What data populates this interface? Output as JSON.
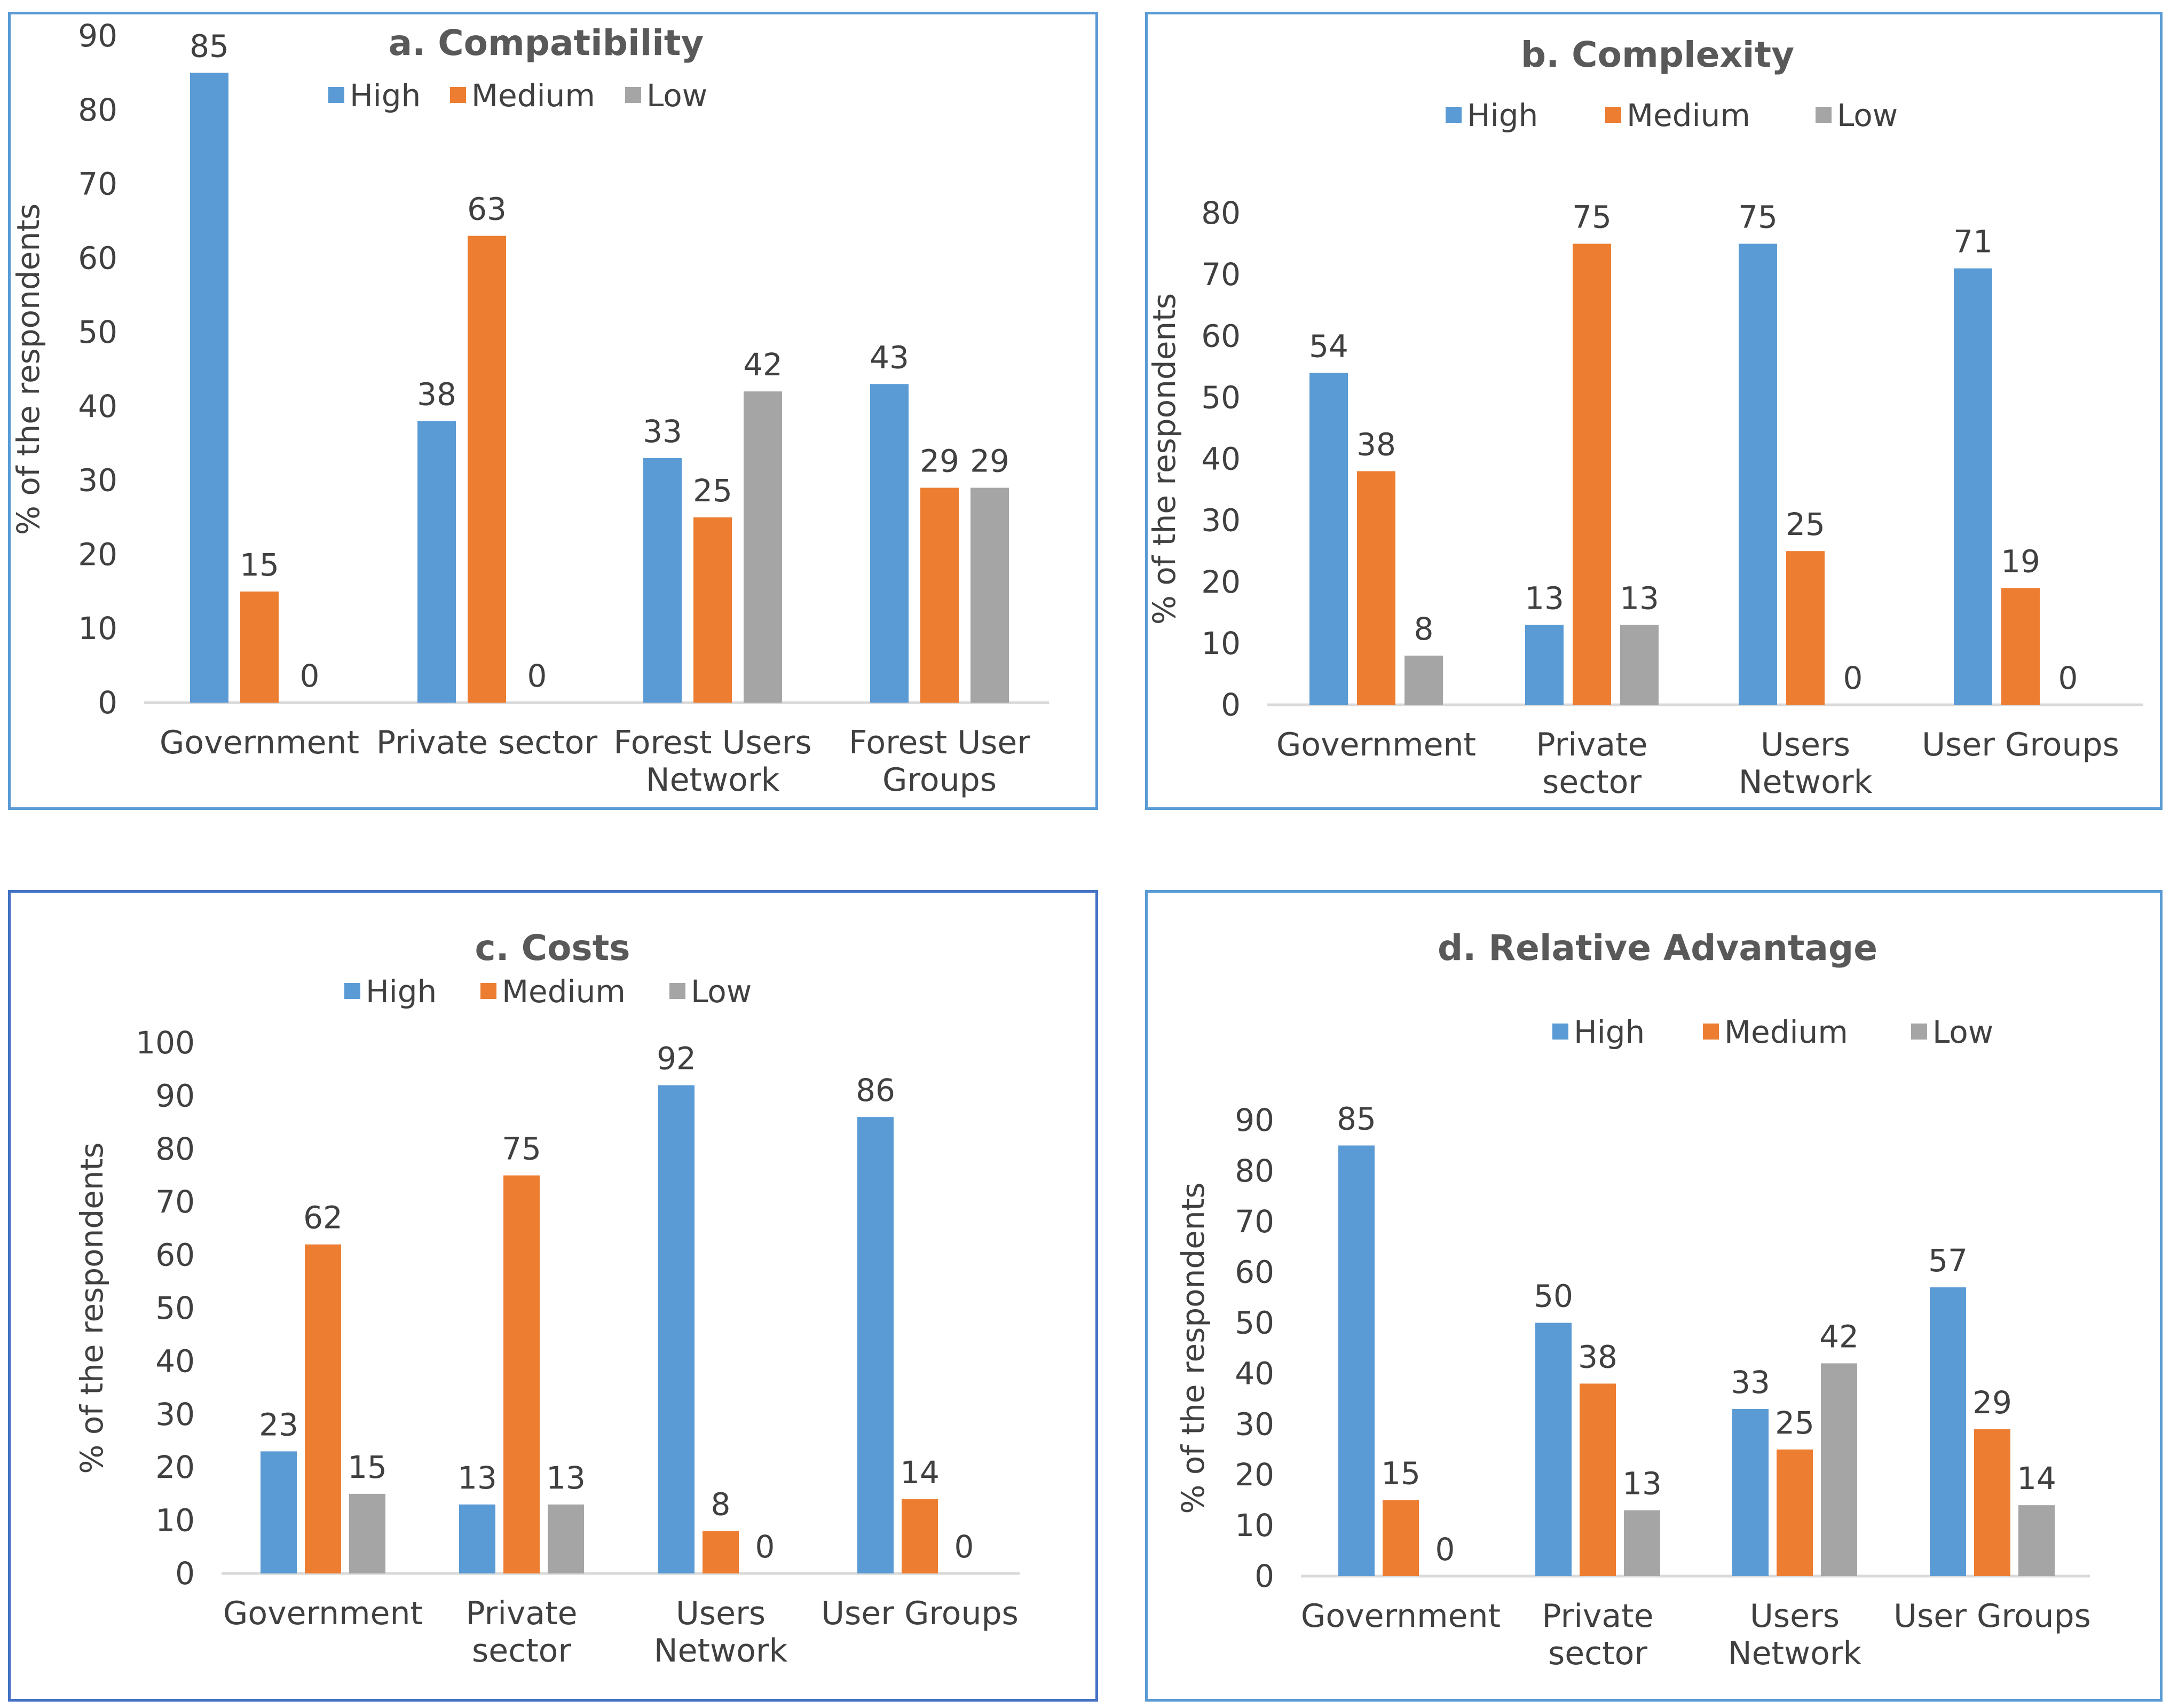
{
  "colors": {
    "high": "#5b9bd5",
    "medium": "#ed7d31",
    "low": "#a5a5a5",
    "axis": "#d9d9d9",
    "text": "#404040"
  },
  "chart_data": [
    {
      "id": "a",
      "type": "bar",
      "title": "a. Compatibility",
      "ylabel": "% of the respondents",
      "ylim": [
        0,
        90
      ],
      "yticks": [
        0,
        10,
        20,
        30,
        40,
        50,
        60,
        70,
        80,
        90
      ],
      "legend": [
        "High",
        "Medium",
        "Low"
      ],
      "categories": [
        [
          "Government"
        ],
        [
          "Private sector"
        ],
        [
          "Forest Users",
          "Network"
        ],
        [
          "Forest User",
          "Groups"
        ]
      ],
      "series": [
        {
          "name": "High",
          "values": [
            85,
            38,
            33,
            43
          ]
        },
        {
          "name": "Medium",
          "values": [
            15,
            63,
            25,
            29
          ]
        },
        {
          "name": "Low",
          "values": [
            0,
            0,
            42,
            29
          ]
        }
      ]
    },
    {
      "id": "b",
      "type": "bar",
      "title": "b. Complexity",
      "ylabel": "% of the respondents",
      "ylim": [
        0,
        80
      ],
      "yticks": [
        0,
        10,
        20,
        30,
        40,
        50,
        60,
        70,
        80
      ],
      "legend": [
        "High",
        "Medium",
        "Low"
      ],
      "categories": [
        [
          "Government"
        ],
        [
          "Private",
          "sector"
        ],
        [
          "Users",
          "Network"
        ],
        [
          "User Groups"
        ]
      ],
      "series": [
        {
          "name": "High",
          "values": [
            54,
            13,
            75,
            71
          ]
        },
        {
          "name": "Medium",
          "values": [
            38,
            75,
            25,
            19
          ]
        },
        {
          "name": "Low",
          "values": [
            8,
            13,
            0,
            0
          ]
        }
      ]
    },
    {
      "id": "c",
      "type": "bar",
      "title": "c. Costs",
      "ylabel": "% of the respondents",
      "ylim": [
        0,
        100
      ],
      "yticks": [
        0,
        10,
        20,
        30,
        40,
        50,
        60,
        70,
        80,
        90,
        100
      ],
      "legend": [
        "High",
        "Medium",
        "Low"
      ],
      "categories": [
        [
          "Government"
        ],
        [
          "Private",
          "sector"
        ],
        [
          "Users",
          "Network"
        ],
        [
          "User Groups"
        ]
      ],
      "series": [
        {
          "name": "High",
          "values": [
            23,
            13,
            92,
            86
          ]
        },
        {
          "name": "Medium",
          "values": [
            62,
            75,
            8,
            14
          ]
        },
        {
          "name": "Low",
          "values": [
            15,
            13,
            0,
            0
          ]
        }
      ]
    },
    {
      "id": "d",
      "type": "bar",
      "title": "d. Relative Advantage",
      "ylabel": "% of the respondents",
      "ylim": [
        0,
        90
      ],
      "yticks": [
        0,
        10,
        20,
        30,
        40,
        50,
        60,
        70,
        80,
        90
      ],
      "legend": [
        "High",
        "Medium",
        "Low"
      ],
      "categories": [
        [
          "Government"
        ],
        [
          "Private",
          "sector"
        ],
        [
          "Users",
          "Network"
        ],
        [
          "User Groups"
        ]
      ],
      "series": [
        {
          "name": "High",
          "values": [
            85,
            50,
            33,
            57
          ]
        },
        {
          "name": "Medium",
          "values": [
            15,
            38,
            25,
            29
          ]
        },
        {
          "name": "Low",
          "values": [
            0,
            13,
            42,
            14
          ]
        }
      ]
    }
  ]
}
